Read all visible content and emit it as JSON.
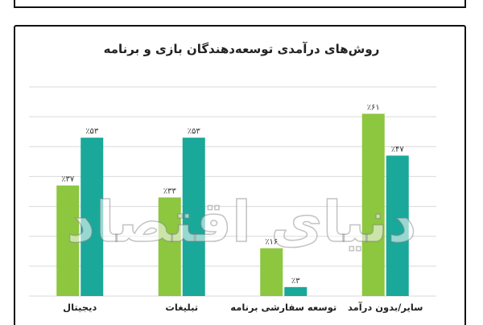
{
  "chart_data": {
    "type": "bar",
    "title": "روش‌های درآمدی توسعه‌دهندگان بازی و برنامه",
    "categories": [
      "سایر/بدون درآمد",
      "توسعه سفارشی برنامه",
      "تبلیغات",
      "دیجیتال"
    ],
    "series": [
      {
        "values": [
          61,
          16,
          33,
          37
        ],
        "labels": [
          "٪۶۱",
          "٪۱۶",
          "٪۳۳",
          "٪۳۷"
        ],
        "color": "#8dc63f"
      },
      {
        "values": [
          47,
          3,
          53,
          53
        ],
        "labels": [
          "٪۴۷",
          "٪۳",
          "٪۵۳",
          "٪۵۳"
        ],
        "color": "#1aa89a"
      }
    ],
    "ylim": [
      0,
      70
    ],
    "grid": true,
    "xlabel": "",
    "ylabel": "",
    "watermark": "دنیای اقتصاد"
  }
}
